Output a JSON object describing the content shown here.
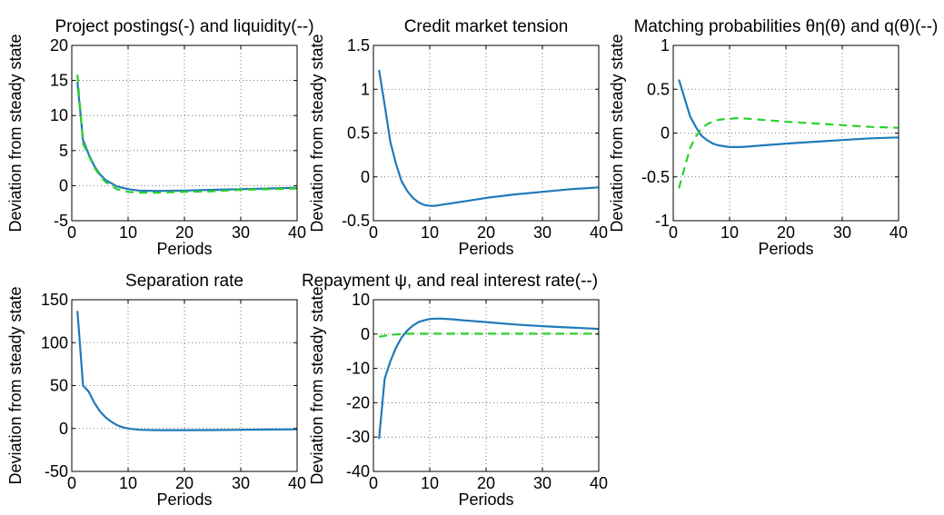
{
  "colors": {
    "solid": "#1f7ab8",
    "dashed": "#2bd12b",
    "grid": "#555555",
    "axis": "#000000"
  },
  "chart_data": [
    {
      "type": "line",
      "title": "Project postings(-) and liquidity(--)",
      "xlabel": "Periods",
      "ylabel": "Deviation from steady state",
      "xlim": [
        0,
        40
      ],
      "ylim": [
        -5,
        20
      ],
      "xticks": [
        0,
        10,
        20,
        30,
        40
      ],
      "yticks": [
        -5,
        0,
        5,
        10,
        15,
        20
      ],
      "grid": true,
      "series": [
        {
          "style": "solid",
          "color": "#1f7ab8",
          "x": [
            1,
            2,
            3,
            4,
            5,
            6,
            8,
            10,
            12,
            15,
            20,
            25,
            30,
            35,
            40
          ],
          "y": [
            14.8,
            6.5,
            4.5,
            2.8,
            1.6,
            0.8,
            -0.1,
            -0.5,
            -0.7,
            -0.75,
            -0.7,
            -0.6,
            -0.5,
            -0.4,
            -0.3
          ]
        },
        {
          "style": "dashed",
          "color": "#2bd12b",
          "x": [
            1,
            2,
            3,
            4,
            5,
            6,
            8,
            10,
            12,
            15,
            20,
            25,
            30,
            35,
            40
          ],
          "y": [
            15.8,
            6.0,
            4.3,
            2.6,
            1.4,
            0.5,
            -0.5,
            -0.9,
            -1.0,
            -1.0,
            -0.9,
            -0.8,
            -0.6,
            -0.5,
            -0.4
          ]
        }
      ]
    },
    {
      "type": "line",
      "title": "Credit market tension",
      "xlabel": "Periods",
      "ylabel": "Deviation from steady state",
      "xlim": [
        0,
        40
      ],
      "ylim": [
        -0.5,
        1.5
      ],
      "xticks": [
        0,
        10,
        20,
        30,
        40
      ],
      "yticks": [
        -0.5,
        0,
        0.5,
        1,
        1.5
      ],
      "grid": true,
      "series": [
        {
          "style": "solid",
          "color": "#1f7ab8",
          "x": [
            1,
            2,
            3,
            4,
            5,
            6,
            7,
            8,
            9,
            10,
            11,
            12,
            14,
            16,
            20,
            25,
            30,
            35,
            40
          ],
          "y": [
            1.22,
            0.82,
            0.4,
            0.15,
            -0.05,
            -0.16,
            -0.24,
            -0.29,
            -0.32,
            -0.33,
            -0.33,
            -0.32,
            -0.3,
            -0.28,
            -0.24,
            -0.2,
            -0.17,
            -0.14,
            -0.12
          ]
        }
      ]
    },
    {
      "type": "line",
      "title": "Matching probabilities θη(θ) and q(θ)(--)",
      "xlabel": "Periods",
      "ylabel": "Deviation from steady state",
      "xlim": [
        0,
        40
      ],
      "ylim": [
        -1,
        1
      ],
      "xticks": [
        0,
        10,
        20,
        30,
        40
      ],
      "yticks": [
        -1,
        -0.5,
        0,
        0.5,
        1
      ],
      "grid": true,
      "series": [
        {
          "style": "solid",
          "color": "#1f7ab8",
          "x": [
            1,
            2,
            3,
            4,
            5,
            6,
            7,
            8,
            9,
            10,
            11,
            12,
            14,
            16,
            20,
            25,
            30,
            35,
            40
          ],
          "y": [
            0.61,
            0.4,
            0.19,
            0.07,
            -0.03,
            -0.08,
            -0.12,
            -0.14,
            -0.15,
            -0.16,
            -0.16,
            -0.16,
            -0.15,
            -0.14,
            -0.12,
            -0.1,
            -0.08,
            -0.06,
            -0.05
          ]
        },
        {
          "style": "dashed",
          "color": "#2bd12b",
          "x": [
            1,
            2,
            3,
            4,
            5,
            6,
            7,
            8,
            9,
            10,
            11,
            12,
            14,
            16,
            20,
            25,
            30,
            35,
            40
          ],
          "y": [
            -0.63,
            -0.4,
            -0.17,
            -0.04,
            0.05,
            0.1,
            0.13,
            0.15,
            0.16,
            0.16,
            0.17,
            0.17,
            0.16,
            0.15,
            0.13,
            0.11,
            0.09,
            0.07,
            0.06
          ]
        }
      ]
    },
    {
      "type": "line",
      "title": "Separation rate",
      "xlabel": "Periods",
      "ylabel": "Deviation from steady state",
      "xlim": [
        0,
        40
      ],
      "ylim": [
        -50,
        150
      ],
      "xticks": [
        0,
        10,
        20,
        30,
        40
      ],
      "yticks": [
        -50,
        0,
        50,
        100,
        150
      ],
      "grid": true,
      "series": [
        {
          "style": "solid",
          "color": "#1f7ab8",
          "x": [
            1,
            2,
            3,
            4,
            5,
            6,
            7,
            8,
            9,
            10,
            12,
            15,
            20,
            25,
            30,
            35,
            40
          ],
          "y": [
            137,
            50,
            43,
            30,
            20,
            13,
            8,
            4,
            1.5,
            0,
            -1.5,
            -2,
            -2,
            -1.8,
            -1.5,
            -1.2,
            -1
          ]
        }
      ]
    },
    {
      "type": "line",
      "title": "Repayment ψ, and real interest rate(--)",
      "xlabel": "Periods",
      "ylabel": "Deviation from steady state",
      "xlim": [
        0,
        40
      ],
      "ylim": [
        -40,
        10
      ],
      "xticks": [
        0,
        10,
        20,
        30,
        40
      ],
      "yticks": [
        -40,
        -30,
        -20,
        -10,
        0,
        10
      ],
      "grid": true,
      "series": [
        {
          "style": "solid",
          "color": "#1f7ab8",
          "x": [
            1,
            2,
            3,
            4,
            5,
            6,
            7,
            8,
            9,
            10,
            11,
            12,
            14,
            16,
            20,
            25,
            30,
            35,
            40
          ],
          "y": [
            -30.5,
            -13,
            -8,
            -4,
            -1,
            1,
            2.5,
            3.5,
            4.0,
            4.4,
            4.5,
            4.5,
            4.3,
            4.0,
            3.5,
            2.8,
            2.3,
            1.9,
            1.5
          ]
        },
        {
          "style": "dashed",
          "color": "#2bd12b",
          "x": [
            1,
            2,
            3,
            4,
            5,
            6,
            8,
            10,
            15,
            20,
            25,
            30,
            35,
            40
          ],
          "y": [
            -0.8,
            -0.5,
            -0.3,
            -0.1,
            0,
            0.1,
            0.1,
            0.1,
            0.1,
            0.1,
            0.1,
            0.1,
            0.1,
            0.1
          ]
        }
      ]
    }
  ]
}
